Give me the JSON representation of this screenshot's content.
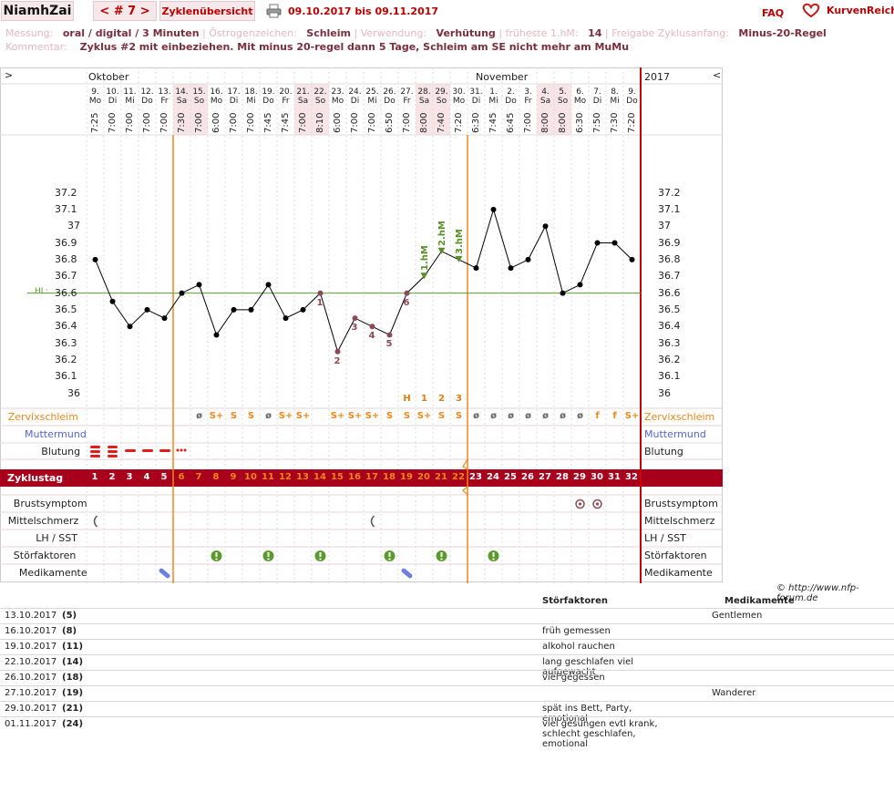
{
  "header": {
    "username": "NiamhZai",
    "nav": "< # 7 >",
    "cycle_overview": "Zyklenübersicht",
    "date_range": "09.10.2017 bis 09.11.2017",
    "faq": "FAQ",
    "brand": "KurvenReich"
  },
  "meta": {
    "messung_label": "Messung:",
    "messung": "oral / digital / 3 Minuten",
    "oestrogen_label": "Östrogenzeichen:",
    "oestrogen": "Schleim",
    "verwendung_label": "Verwendung:",
    "verwendung": "Verhütung",
    "fruehest_label": "früheste 1.hM:",
    "fruehest": "14",
    "freigabe_label": "Freigabe Zyklusanfang:",
    "freigabe": "Minus-20-Regel",
    "kommentar_label": "Kommentar:",
    "kommentar": "Zyklus #2  mit einbeziehen. Mit minus 20-regel dann 5 Tage,  Schleim am SE nicht mehr am MuMu"
  },
  "chart_data": {
    "type": "line",
    "arrow_left": ">",
    "arrow_right": "<",
    "year": "2017",
    "month_labels": [
      {
        "label": "Oktober",
        "start_index": 0
      },
      {
        "label": "November",
        "start_index": 23
      }
    ],
    "days": [
      {
        "d": "9.",
        "w": "Mo",
        "t": "7:25",
        "temp": 36.8,
        "cd": "1",
        "we": false
      },
      {
        "d": "10.",
        "w": "Di",
        "t": "7:00",
        "temp": 36.55,
        "cd": "2",
        "we": false
      },
      {
        "d": "11.",
        "w": "Mi",
        "t": "7:00",
        "temp": 36.4,
        "cd": "3",
        "we": false
      },
      {
        "d": "12.",
        "w": "Do",
        "t": "7:00",
        "temp": 36.5,
        "cd": "4",
        "we": false
      },
      {
        "d": "13.",
        "w": "Fr",
        "t": "7:00",
        "temp": 36.45,
        "cd": "5",
        "we": false
      },
      {
        "d": "14.",
        "w": "Sa",
        "t": "7:30",
        "temp": 36.6,
        "cd": "6",
        "we": true
      },
      {
        "d": "15.",
        "w": "So",
        "t": "7:00",
        "temp": 36.65,
        "cd": "7",
        "we": true
      },
      {
        "d": "16.",
        "w": "Mo",
        "t": "6:00",
        "temp": 36.35,
        "cd": "8",
        "we": false
      },
      {
        "d": "17.",
        "w": "Di",
        "t": "7:00",
        "temp": 36.5,
        "cd": "9",
        "we": false
      },
      {
        "d": "18.",
        "w": "Mi",
        "t": "7:00",
        "temp": 36.5,
        "cd": "10",
        "we": false
      },
      {
        "d": "19.",
        "w": "Do",
        "t": "7:45",
        "temp": 36.65,
        "cd": "11",
        "we": false
      },
      {
        "d": "20.",
        "w": "Fr",
        "t": "7:45",
        "temp": 36.45,
        "cd": "12",
        "we": false
      },
      {
        "d": "21.",
        "w": "Sa",
        "t": "7:00",
        "temp": 36.5,
        "cd": "13",
        "we": true
      },
      {
        "d": "22.",
        "w": "So",
        "t": "8:10",
        "temp": 36.6,
        "cd": "14",
        "we": true
      },
      {
        "d": "23.",
        "w": "Mo",
        "t": "6:00",
        "temp": 36.25,
        "cd": "15",
        "we": false
      },
      {
        "d": "24.",
        "w": "Di",
        "t": "7:00",
        "temp": 36.45,
        "cd": "16",
        "we": false
      },
      {
        "d": "25.",
        "w": "Mi",
        "t": "7:00",
        "temp": 36.4,
        "cd": "17",
        "we": false
      },
      {
        "d": "26.",
        "w": "Do",
        "t": "6:50",
        "temp": 36.35,
        "cd": "18",
        "we": false
      },
      {
        "d": "27.",
        "w": "Fr",
        "t": "7:00",
        "temp": 36.6,
        "cd": "19",
        "we": false
      },
      {
        "d": "28.",
        "w": "Sa",
        "t": "8:00",
        "temp": 36.7,
        "cd": "20",
        "we": true
      },
      {
        "d": "29.",
        "w": "So",
        "t": "7:40",
        "temp": 36.85,
        "cd": "21",
        "we": true
      },
      {
        "d": "30.",
        "w": "Mo",
        "t": "7:20",
        "temp": 36.8,
        "cd": "22",
        "we": false
      },
      {
        "d": "31.",
        "w": "Di",
        "t": "6:30",
        "temp": 36.75,
        "cd": "23",
        "we": false
      },
      {
        "d": "1.",
        "w": "Mi",
        "t": "7:45",
        "temp": 37.1,
        "cd": "24",
        "we": false
      },
      {
        "d": "2.",
        "w": "Do",
        "t": "6:45",
        "temp": 36.75,
        "cd": "25",
        "we": false
      },
      {
        "d": "3.",
        "w": "Fr",
        "t": "7:00",
        "temp": 36.8,
        "cd": "26",
        "we": false
      },
      {
        "d": "4.",
        "w": "Sa",
        "t": "8:00",
        "temp": 37.0,
        "cd": "27",
        "we": true
      },
      {
        "d": "5.",
        "w": "So",
        "t": "8:00",
        "temp": 36.6,
        "cd": "28",
        "we": true
      },
      {
        "d": "6.",
        "w": "Mo",
        "t": "6:30",
        "temp": 36.65,
        "cd": "29",
        "we": false
      },
      {
        "d": "7.",
        "w": "Di",
        "t": "7:50",
        "temp": 36.9,
        "cd": "30",
        "we": false
      },
      {
        "d": "8.",
        "w": "Mi",
        "t": "7:30",
        "temp": 36.9,
        "cd": "31",
        "we": false
      },
      {
        "d": "9.",
        "w": "Do",
        "t": "7:20",
        "temp": 36.8,
        "cd": "32",
        "we": false
      }
    ],
    "y_ticks": [
      "37.2",
      "37.1",
      "37",
      "36.9",
      "36.8",
      "36.7",
      "36.6",
      "36.5",
      "36.4",
      "36.3",
      "36.2",
      "36.1",
      "36"
    ],
    "ylim": [
      35.9,
      37.35
    ],
    "hl_label": "HL:",
    "hl_value": 36.6,
    "low_labels": [
      {
        "index": 13,
        "label": "1"
      },
      {
        "index": 14,
        "label": "2"
      },
      {
        "index": 15,
        "label": "3"
      },
      {
        "index": 16,
        "label": "4"
      },
      {
        "index": 17,
        "label": "5"
      },
      {
        "index": 18,
        "label": "6"
      }
    ],
    "high_labels": [
      {
        "index": 19,
        "label": "1.hM"
      },
      {
        "index": 20,
        "label": "2.hM"
      },
      {
        "index": 21,
        "label": "3.hM"
      }
    ],
    "orange_lines": [
      5,
      22
    ],
    "cervix_top": [
      {
        "index": 18,
        "label": "H"
      },
      {
        "index": 19,
        "label": "1"
      },
      {
        "index": 20,
        "label": "2"
      },
      {
        "index": 21,
        "label": "3"
      }
    ],
    "rows": {
      "zervix_label": "Zervixschleim",
      "zervix": [
        "",
        "",
        "",
        "",
        "",
        "",
        "ø",
        "S+",
        "S",
        "S",
        "ø",
        "S+",
        "S+",
        "",
        "S+",
        "S+",
        "S+",
        "S",
        "S",
        "S+",
        "S",
        "S",
        "ø",
        "ø",
        "ø",
        "ø",
        "ø",
        "ø",
        "ø",
        "f",
        "f",
        "S+"
      ],
      "muttermund_label": "Muttermund",
      "blutung_label": "Blutung",
      "blutung": [
        "heavy",
        "heavy",
        "medium",
        "medium",
        "medium",
        "spot",
        "",
        "",
        "",
        "",
        "",
        "",
        "",
        "",
        "",
        "",
        "",
        "",
        "",
        "",
        "",
        "",
        "",
        "",
        "",
        "",
        "",
        "",
        "",
        "",
        "",
        ""
      ],
      "zyklustag_label": "Zyklustag",
      "brust_label": "Brustsymptom",
      "brust": [
        28,
        29
      ],
      "mittel_label": "Mittelschmerz",
      "mittel": [
        0,
        16
      ],
      "lh_label": "LH / SST",
      "stoer_label": "Störfaktoren",
      "stoer": [
        7,
        10,
        13,
        17,
        20,
        23
      ],
      "medi_label": "Medikamente",
      "medi": [
        4,
        18
      ]
    }
  },
  "credit": "© http://www.nfp-forum.de",
  "notes": {
    "col_stoer": "Störfaktoren",
    "col_medi": "Medikamente",
    "rows": [
      {
        "date": "13.10.2017",
        "day": "(5)",
        "stoer": "",
        "medi": "Gentlemen"
      },
      {
        "date": "16.10.2017",
        "day": "(8)",
        "stoer": "früh gemessen",
        "medi": ""
      },
      {
        "date": "19.10.2017",
        "day": "(11)",
        "stoer": "alkohol rauchen",
        "medi": ""
      },
      {
        "date": "22.10.2017",
        "day": "(14)",
        "stoer": "lang geschlafen viel aufgewacht",
        "medi": ""
      },
      {
        "date": "26.10.2017",
        "day": "(18)",
        "stoer": "viel gegessen",
        "medi": ""
      },
      {
        "date": "27.10.2017",
        "day": "(19)",
        "stoer": "",
        "medi": "Wanderer"
      },
      {
        "date": "29.10.2017",
        "day": "(21)",
        "stoer": "spät ins Bett, Party, emotional",
        "medi": ""
      },
      {
        "date": "01.11.2017",
        "day": "(24)",
        "stoer": "viel gesungen evtl krank, schlecht geschlafen, emotional",
        "medi": ""
      }
    ]
  },
  "colors": {
    "accent": "#b80000",
    "orange": "#f0861b",
    "zyk_bar": "#a8001c",
    "hl": "#5b9b2d",
    "low": "#8b4a55",
    "green": "#5b8f2a"
  }
}
